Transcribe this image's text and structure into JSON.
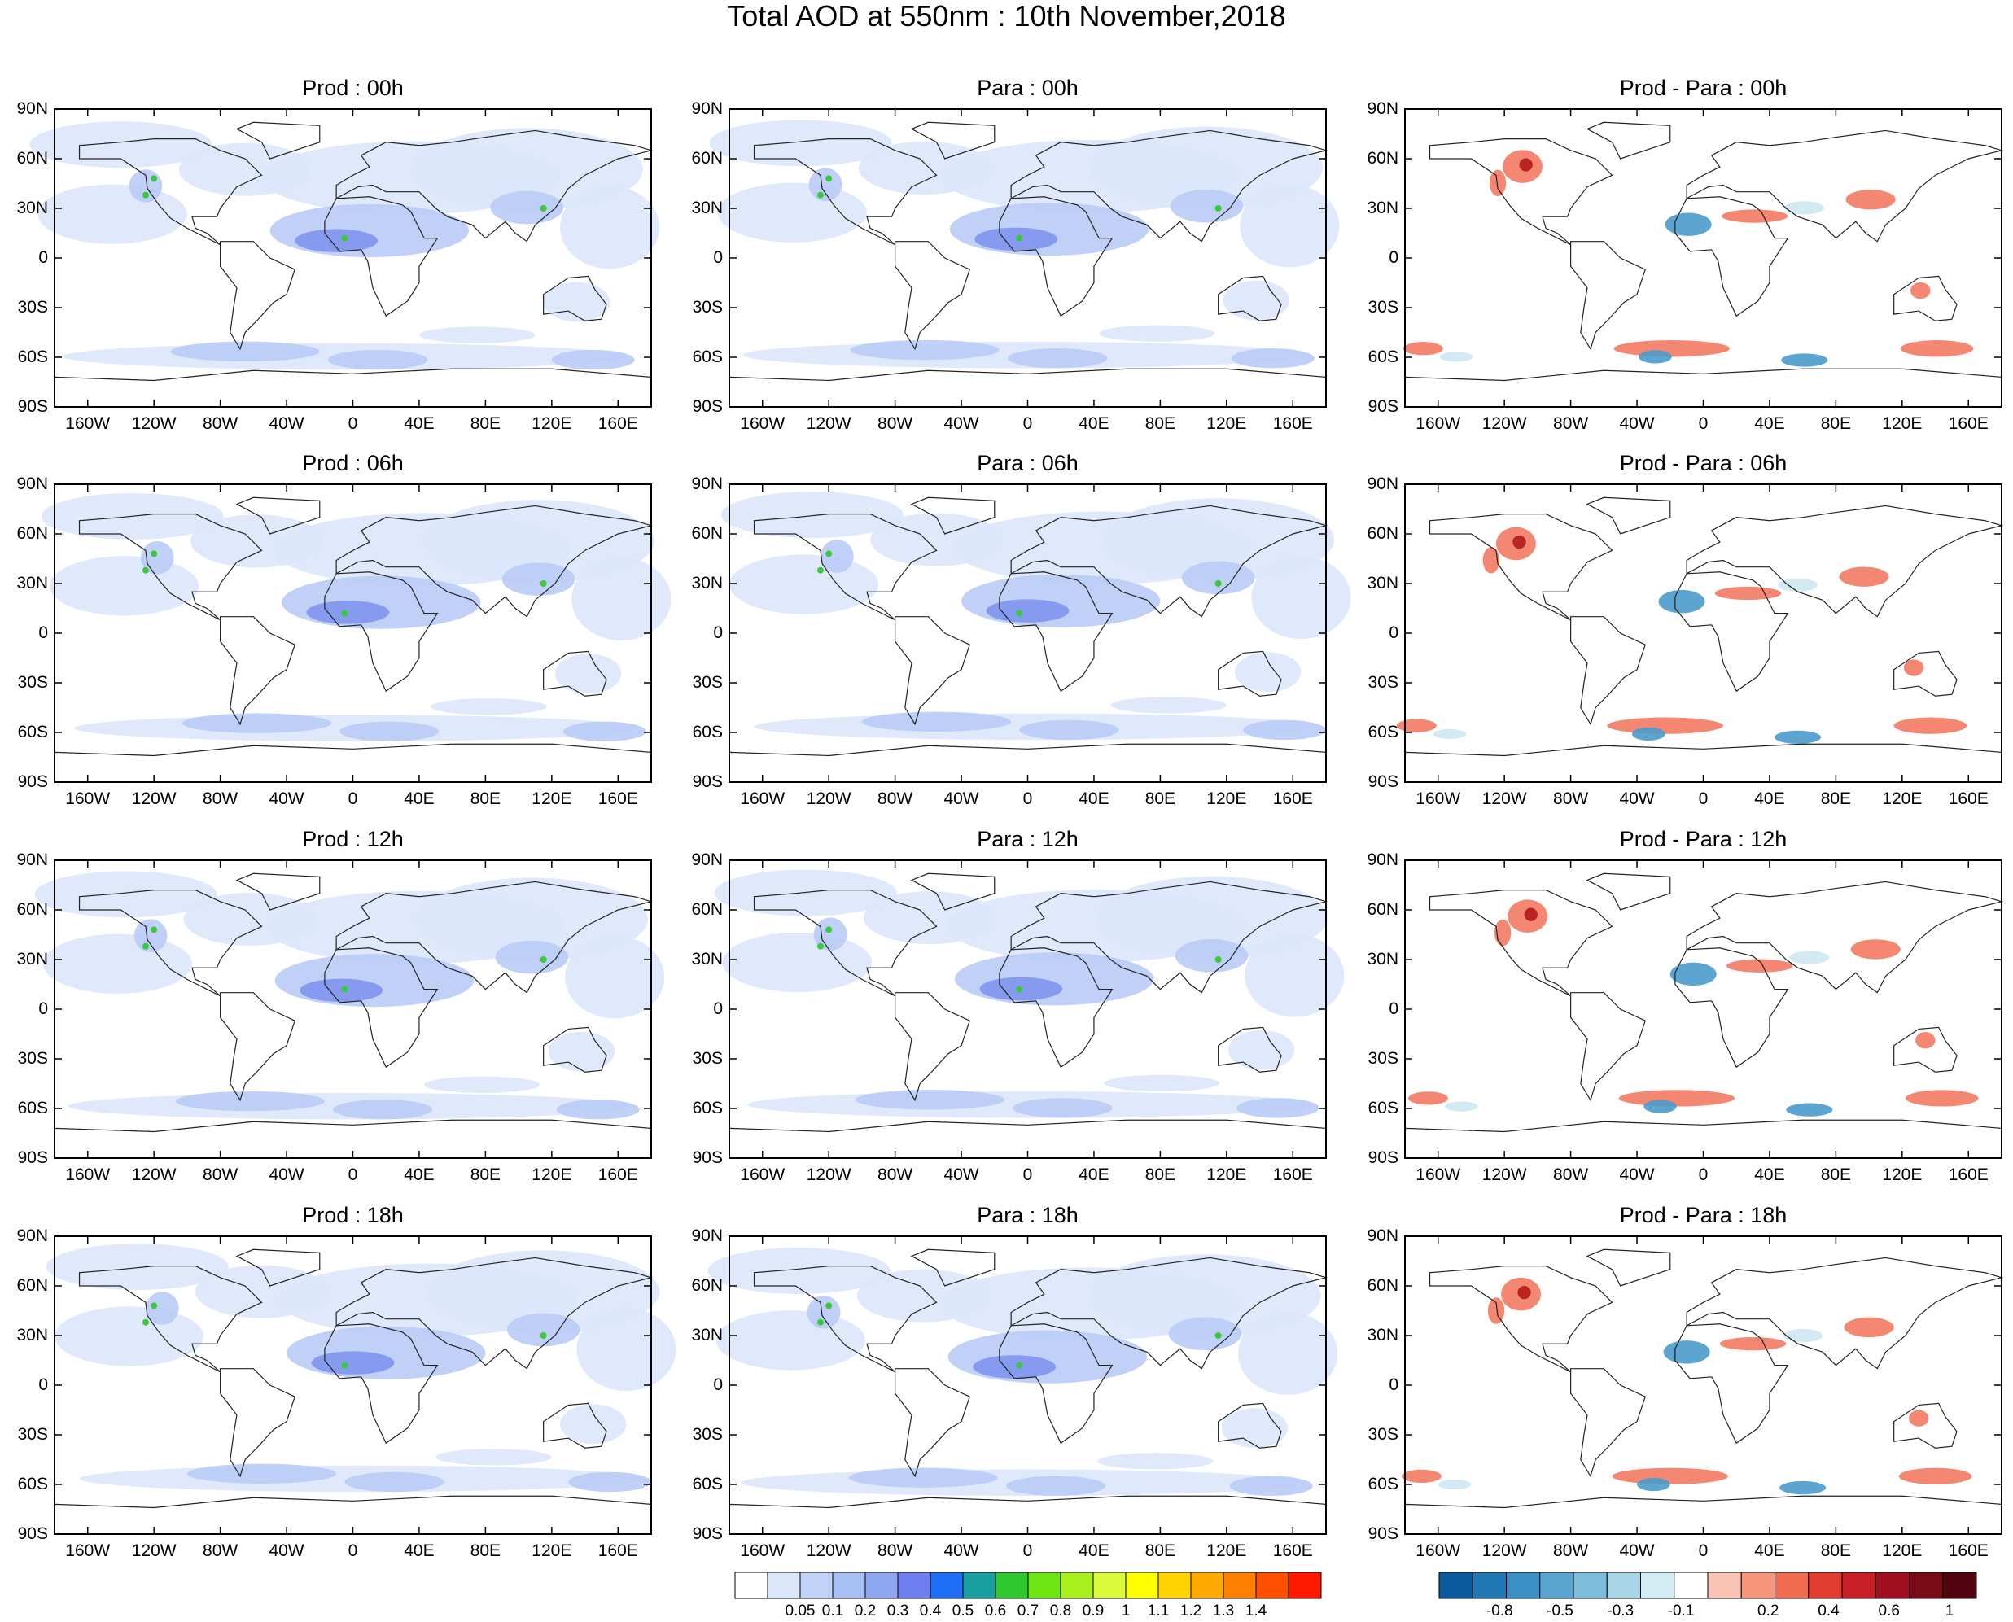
{
  "title": "Total AOD at 550nm : 10th November,2018",
  "panels": [
    {
      "title": "Prod : 00h",
      "kind": "aod"
    },
    {
      "title": "Para : 00h",
      "kind": "aod"
    },
    {
      "title": "Prod - Para : 00h",
      "kind": "diff"
    },
    {
      "title": "Prod : 06h",
      "kind": "aod"
    },
    {
      "title": "Para : 06h",
      "kind": "aod"
    },
    {
      "title": "Prod - Para : 06h",
      "kind": "diff"
    },
    {
      "title": "Prod : 12h",
      "kind": "aod"
    },
    {
      "title": "Para : 12h",
      "kind": "aod"
    },
    {
      "title": "Prod - Para : 12h",
      "kind": "diff"
    },
    {
      "title": "Prod : 18h",
      "kind": "aod"
    },
    {
      "title": "Para : 18h",
      "kind": "aod"
    },
    {
      "title": "Prod - Para : 18h",
      "kind": "diff"
    }
  ],
  "lat_labels": [
    "90N",
    "60N",
    "30N",
    "0",
    "30S",
    "60S",
    "90S"
  ],
  "lon_labels": [
    "160W",
    "120W",
    "80W",
    "40W",
    "0",
    "40E",
    "80E",
    "120E",
    "160E"
  ],
  "aod_colorbar": {
    "colors": [
      "#ffffff",
      "#dce6fb",
      "#c3d3f8",
      "#a9c0f5",
      "#8fa6f0",
      "#6f7ef0",
      "#1e6ef5",
      "#1aa0a0",
      "#2ec82e",
      "#6ee614",
      "#aaf01e",
      "#dcfa3c",
      "#ffff00",
      "#ffd200",
      "#ffaa00",
      "#ff8000",
      "#ff5000",
      "#ff1a00"
    ],
    "labels": [
      "0.05",
      "0.1",
      "0.2",
      "0.3",
      "0.4",
      "0.5",
      "0.6",
      "0.7",
      "0.8",
      "0.9",
      "1",
      "1.1",
      "1.2",
      "1.3",
      "1.4"
    ]
  },
  "diff_colorbar": {
    "colors": [
      "#0a5a9c",
      "#1f77b4",
      "#3a8fc4",
      "#5aa5d0",
      "#7ebcdc",
      "#a9d6e6",
      "#d2ecf3",
      "#ffffff",
      "#f9c4b4",
      "#f6977c",
      "#f06b50",
      "#e13c30",
      "#c81e26",
      "#a10e1f",
      "#7a0a16",
      "#520510"
    ],
    "labels": [
      "-0.8",
      "-0.5",
      "-0.3",
      "-0.1",
      "0.2",
      "0.4",
      "0.6",
      "1"
    ]
  },
  "colors": {
    "aod_light": "#dde7fb",
    "aod_mid": "#b9cbf6",
    "aod_dark": "#7f95ee",
    "aod_green": "#3cc83c",
    "diff_red": "#f27a62",
    "diff_dark_red": "#b01a1a",
    "diff_blue": "#4a9bcb",
    "diff_light_blue": "#cfe8f2",
    "coastline": "#222222"
  }
}
